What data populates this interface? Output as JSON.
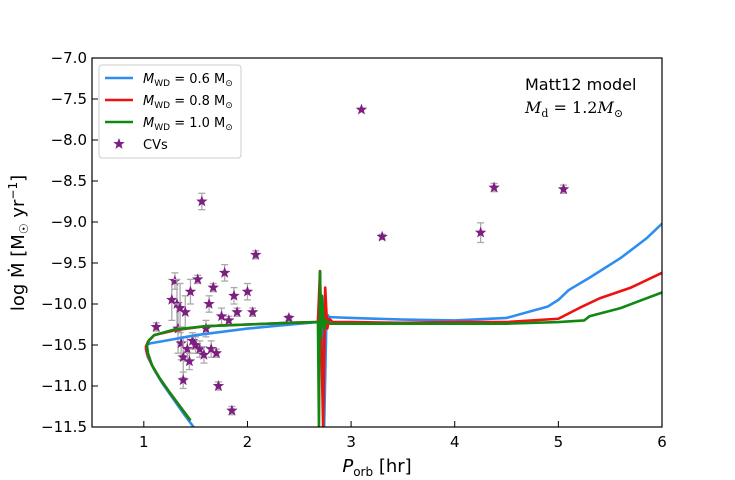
{
  "chart_data": {
    "type": "line",
    "xlabel": "P_orb [hr]",
    "xlabel_main": "P",
    "xlabel_sub": "orb",
    "xlabel_unit": " [hr]",
    "ylabel": "log Ṁ [M☉ yr⁻¹]",
    "ylabel_main": "log Ṁ [M",
    "ylabel_sun": "☉",
    "ylabel_tail": " yr",
    "ylabel_sup": "−1",
    "ylabel_close": "]",
    "xlim": [
      0.5,
      6.0
    ],
    "ylim": [
      -11.5,
      -7.0
    ],
    "xticks": [
      1,
      2,
      3,
      4,
      5,
      6
    ],
    "yticks": [
      -11.5,
      -11.0,
      -10.5,
      -10.0,
      -9.5,
      -9.0,
      -8.5,
      -8.0,
      -7.5,
      -7.0
    ],
    "xtick_labels": [
      "1",
      "2",
      "3",
      "4",
      "5",
      "6"
    ],
    "ytick_labels": [
      "−11.5",
      "−11.0",
      "−10.5",
      "−10.0",
      "−9.5",
      "−9.0",
      "−8.5",
      "−8.0",
      "−7.5",
      "−7.0"
    ],
    "annotation_line1": "Matt12 model",
    "annotation_line2_main": "M",
    "annotation_line2_sub": "d",
    "annotation_line2_rest": " = 1.2",
    "annotation_line2_sym": "M",
    "annotation_line2_sun": "⊙",
    "legend_position": "upper-left",
    "legend": [
      {
        "main": "M",
        "sub": "WD",
        "rest": " = 0.6 M",
        "sun": "⊙",
        "color": "#2e8ef0",
        "kind": "line"
      },
      {
        "main": "M",
        "sub": "WD",
        "rest": " = 0.8 M",
        "sun": "⊙",
        "color": "#ee1111",
        "kind": "line"
      },
      {
        "main": "M",
        "sub": "WD",
        "rest": " = 1.0 M",
        "sun": "⊙",
        "color": "#118811",
        "kind": "line"
      },
      {
        "label": "CVs",
        "color": "#7e1e80",
        "kind": "star"
      }
    ],
    "series": [
      {
        "color": "#2e8ef0",
        "x": [
          1.48,
          1.38,
          1.28,
          1.18,
          1.1,
          1.04,
          1.02,
          1.03,
          1.06,
          1.2,
          1.5,
          2.0,
          2.5,
          2.68,
          2.7,
          2.72,
          2.74,
          2.76,
          2.78,
          2.76,
          2.74,
          2.8,
          3.0,
          3.5,
          4.0,
          4.5,
          4.9,
          5.0,
          5.1,
          5.3,
          5.6,
          5.85,
          6.0
        ],
        "y": [
          -11.5,
          -11.33,
          -11.15,
          -10.97,
          -10.8,
          -10.65,
          -10.55,
          -10.5,
          -10.48,
          -10.45,
          -10.38,
          -10.3,
          -10.24,
          -10.22,
          -9.8,
          -10.18,
          -11.5,
          -10.3,
          -10.14,
          -10.2,
          -10.16,
          -10.16,
          -10.17,
          -10.19,
          -10.2,
          -10.17,
          -10.03,
          -9.95,
          -9.83,
          -9.68,
          -9.44,
          -9.2,
          -9.02
        ]
      },
      {
        "color": "#ee1111",
        "x": [
          1.45,
          1.35,
          1.25,
          1.15,
          1.08,
          1.03,
          1.02,
          1.04,
          1.1,
          1.3,
          1.6,
          2.0,
          2.4,
          2.68,
          2.7,
          2.71,
          2.73,
          2.75,
          2.77,
          2.79,
          2.82,
          3.0,
          3.5,
          4.0,
          4.5,
          5.0,
          5.2,
          5.4,
          5.7,
          6.0
        ],
        "y": [
          -11.42,
          -11.25,
          -11.08,
          -10.9,
          -10.75,
          -10.6,
          -10.52,
          -10.46,
          -10.38,
          -10.32,
          -10.27,
          -10.25,
          -10.23,
          -10.22,
          -9.6,
          -10.25,
          -11.5,
          -9.8,
          -10.3,
          -10.18,
          -10.22,
          -10.22,
          -10.23,
          -10.22,
          -10.22,
          -10.18,
          -10.05,
          -9.93,
          -9.8,
          -9.62
        ]
      },
      {
        "color": "#118811",
        "x": [
          1.45,
          1.35,
          1.25,
          1.15,
          1.08,
          1.04,
          1.03,
          1.05,
          1.1,
          1.3,
          1.6,
          2.0,
          2.4,
          2.68,
          2.69,
          2.7,
          2.71,
          2.72,
          2.74,
          2.76,
          2.8,
          3.0,
          3.5,
          4.0,
          4.5,
          5.0,
          5.25,
          5.3,
          5.6,
          6.0
        ],
        "y": [
          -11.42,
          -11.25,
          -11.08,
          -10.9,
          -10.75,
          -10.6,
          -10.5,
          -10.44,
          -10.38,
          -10.31,
          -10.27,
          -10.25,
          -10.23,
          -10.22,
          -11.5,
          -9.6,
          -10.4,
          -9.9,
          -10.3,
          -10.2,
          -10.24,
          -10.24,
          -10.24,
          -10.24,
          -10.24,
          -10.22,
          -10.2,
          -10.15,
          -10.05,
          -9.86
        ]
      }
    ],
    "cv_points": [
      {
        "x": 1.12,
        "y": -10.28,
        "err": 0.05
      },
      {
        "x": 1.27,
        "y": -9.95,
        "err": 0.25
      },
      {
        "x": 1.3,
        "y": -9.72,
        "err": 0.1
      },
      {
        "x": 1.32,
        "y": -10.0,
        "err": 0.3
      },
      {
        "x": 1.33,
        "y": -10.3,
        "err": 0.3
      },
      {
        "x": 1.35,
        "y": -10.05,
        "err": 0.3
      },
      {
        "x": 1.36,
        "y": -10.48,
        "err": 0.2
      },
      {
        "x": 1.38,
        "y": -10.65,
        "err": 0.25
      },
      {
        "x": 1.38,
        "y": -10.93,
        "err": 0.1
      },
      {
        "x": 1.4,
        "y": -10.1,
        "err": 0.2
      },
      {
        "x": 1.42,
        "y": -10.55,
        "err": 0.15
      },
      {
        "x": 1.44,
        "y": -10.7,
        "err": 0.1
      },
      {
        "x": 1.45,
        "y": -9.85,
        "err": 0.15
      },
      {
        "x": 1.47,
        "y": -10.45,
        "err": 0.1
      },
      {
        "x": 1.5,
        "y": -10.5,
        "err": 0.1
      },
      {
        "x": 1.52,
        "y": -9.7,
        "err": 0.05
      },
      {
        "x": 1.54,
        "y": -10.55,
        "err": 0.1
      },
      {
        "x": 1.56,
        "y": -8.75,
        "err": 0.1
      },
      {
        "x": 1.58,
        "y": -10.62,
        "err": 0.1
      },
      {
        "x": 1.6,
        "y": -10.3,
        "err": 0.1
      },
      {
        "x": 1.63,
        "y": -10.0,
        "err": 0.1
      },
      {
        "x": 1.65,
        "y": -10.55,
        "err": 0.1
      },
      {
        "x": 1.67,
        "y": -9.8,
        "err": 0.05
      },
      {
        "x": 1.7,
        "y": -10.6,
        "err": 0.05
      },
      {
        "x": 1.72,
        "y": -11.0,
        "err": 0.05
      },
      {
        "x": 1.75,
        "y": -10.15,
        "err": 0.1
      },
      {
        "x": 1.78,
        "y": -9.62,
        "err": 0.1
      },
      {
        "x": 1.82,
        "y": -10.2,
        "err": 0.05
      },
      {
        "x": 1.85,
        "y": -11.3,
        "err": 0.05
      },
      {
        "x": 1.87,
        "y": -9.9,
        "err": 0.1
      },
      {
        "x": 1.9,
        "y": -10.1,
        "err": 0.05
      },
      {
        "x": 2.0,
        "y": -9.85,
        "err": 0.1
      },
      {
        "x": 2.05,
        "y": -10.1,
        "err": 0.05
      },
      {
        "x": 2.08,
        "y": -9.4,
        "err": 0.05
      },
      {
        "x": 2.4,
        "y": -10.17,
        "err": 0.03
      },
      {
        "x": 3.1,
        "y": -7.63,
        "err": 0.0
      },
      {
        "x": 3.3,
        "y": -9.18,
        "err": 0.03
      },
      {
        "x": 4.25,
        "y": -9.13,
        "err": 0.12
      },
      {
        "x": 4.38,
        "y": -8.58,
        "err": 0.05
      },
      {
        "x": 5.05,
        "y": -8.6,
        "err": 0.05
      }
    ]
  }
}
